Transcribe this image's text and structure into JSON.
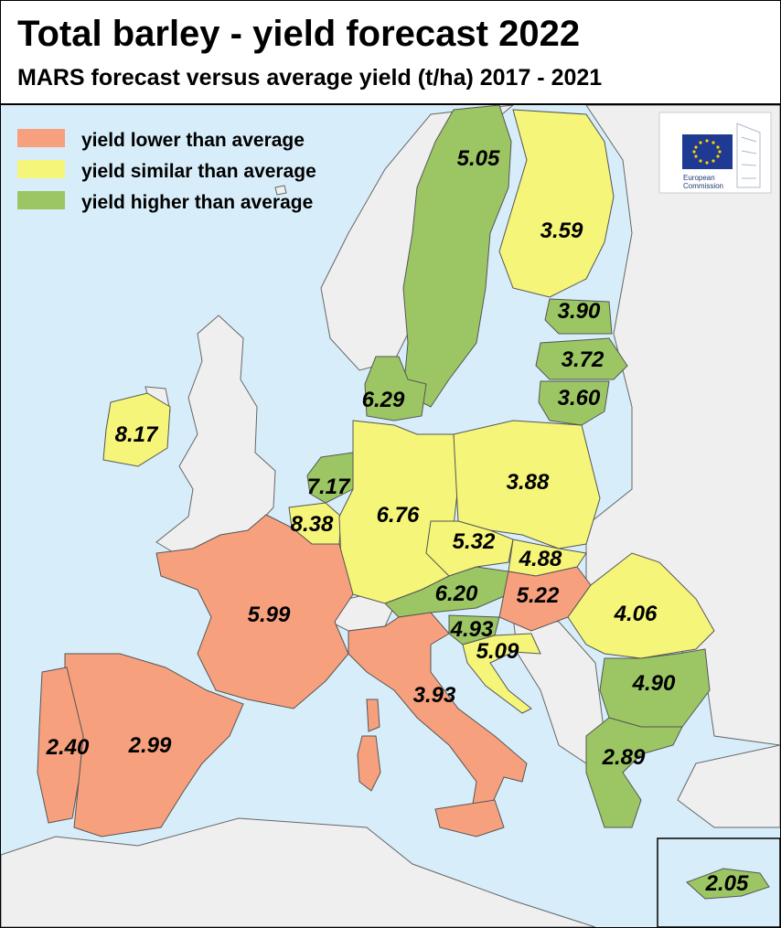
{
  "title": "Total barley - yield forecast 2022",
  "subtitle": "MARS forecast versus average yield (t/ha) 2017 - 2021",
  "colors": {
    "sea": "#d7eefa",
    "nonEU": "#efefef",
    "border": "#555555",
    "lower": "#f7a07e",
    "similar": "#f5f57a",
    "higher": "#9cc664"
  },
  "legend": [
    {
      "label": "yield lower than average",
      "category": "lower"
    },
    {
      "label": "yield similar than average",
      "category": "similar"
    },
    {
      "label": "yield higher than average",
      "category": "higher"
    }
  ],
  "logo": {
    "line1": "European",
    "line2": "Commission"
  },
  "regions": [
    {
      "country": "Sweden",
      "value": "5.05",
      "category": "higher"
    },
    {
      "country": "Finland",
      "value": "3.59",
      "category": "similar"
    },
    {
      "country": "Estonia",
      "value": "3.90",
      "category": "higher"
    },
    {
      "country": "Latvia",
      "value": "3.72",
      "category": "higher"
    },
    {
      "country": "Lithuania",
      "value": "3.60",
      "category": "higher"
    },
    {
      "country": "Denmark",
      "value": "6.29",
      "category": "higher"
    },
    {
      "country": "Ireland",
      "value": "8.17",
      "category": "similar"
    },
    {
      "country": "Netherlands",
      "value": "7.17",
      "category": "higher"
    },
    {
      "country": "Belgium",
      "value": "8.38",
      "category": "similar"
    },
    {
      "country": "Germany",
      "value": "6.76",
      "category": "similar"
    },
    {
      "country": "Poland",
      "value": "3.88",
      "category": "similar"
    },
    {
      "country": "Czechia",
      "value": "5.32",
      "category": "similar"
    },
    {
      "country": "Slovakia",
      "value": "4.88",
      "category": "similar"
    },
    {
      "country": "Austria",
      "value": "6.20",
      "category": "higher"
    },
    {
      "country": "Hungary",
      "value": "5.22",
      "category": "lower"
    },
    {
      "country": "Slovenia",
      "value": "4.93",
      "category": "higher"
    },
    {
      "country": "Croatia",
      "value": "5.09",
      "category": "similar"
    },
    {
      "country": "Romania",
      "value": "4.06",
      "category": "similar"
    },
    {
      "country": "Bulgaria",
      "value": "4.90",
      "category": "higher"
    },
    {
      "country": "France",
      "value": "5.99",
      "category": "lower"
    },
    {
      "country": "Italy",
      "value": "3.93",
      "category": "lower"
    },
    {
      "country": "Spain",
      "value": "2.99",
      "category": "lower"
    },
    {
      "country": "Portugal",
      "value": "2.40",
      "category": "lower"
    },
    {
      "country": "Greece",
      "value": "2.89",
      "category": "higher"
    },
    {
      "country": "Cyprus",
      "value": "2.05",
      "category": "higher"
    }
  ]
}
